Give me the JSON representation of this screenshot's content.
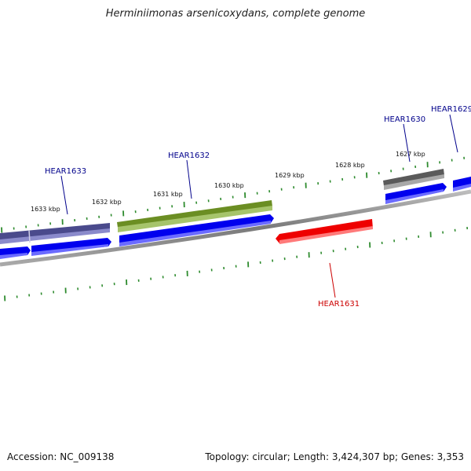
{
  "title": "Herminiimonas arsenicoxydans, complete genome",
  "footer": {
    "accession": "Accession: NC_009138",
    "summary": "Topology: circular; Length: 3,424,307 bp; Genes: 3,353"
  },
  "colors": {
    "backbone": "#8c8c8c",
    "tick": "#2e8b2e",
    "cds": "#0000ee",
    "gene_hear1633": "#4a4a8c",
    "gene_hear1632": "#6b8e23",
    "gene_hear1631": "#ee0000",
    "gene_hear1630": "#5a5a5a",
    "label_forward": "#00008b",
    "label_reverse": "#cc0000"
  },
  "ruler": {
    "labels": [
      "1633 kbp",
      "1632 kbp",
      "1631 kbp",
      "1630 kbp",
      "1629 kbp",
      "1628 kbp",
      "1627 kbp"
    ]
  },
  "genes": [
    {
      "name": "HEAR1633",
      "strand": "forward"
    },
    {
      "name": "HEAR1632",
      "strand": "forward"
    },
    {
      "name": "HEAR1631",
      "strand": "reverse"
    },
    {
      "name": "HEAR1630",
      "strand": "forward"
    },
    {
      "name": "HEAR1629",
      "strand": "forward"
    }
  ]
}
